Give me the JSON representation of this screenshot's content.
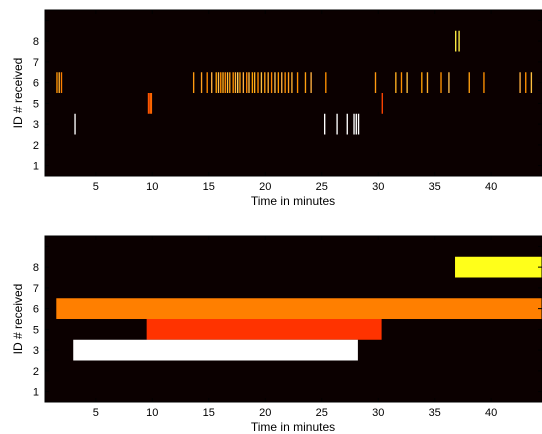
{
  "chart_data": [
    {
      "type": "heatmap",
      "title": "",
      "xlabel": "Time in minutes",
      "ylabel": "ID # received",
      "xlim": [
        0.5,
        44.5
      ],
      "ylim": [
        0.5,
        8.5
      ],
      "x_ticks": [
        5,
        10,
        15,
        20,
        25,
        30,
        35,
        40
      ],
      "y_ticks": [
        1,
        2,
        3,
        4,
        5,
        6,
        7,
        8
      ],
      "y_tick_labels": [
        "1",
        "2",
        "3",
        "5",
        "6",
        "7",
        "8"
      ],
      "y_tick_label_rows": [
        1,
        2,
        3,
        4,
        5,
        6,
        7
      ],
      "background_color": "#0b0000",
      "rows": [
        {
          "row": 7,
          "id_label": "8",
          "events": [
            {
              "x": 36.8,
              "width": 0.12,
              "color": "#ffee44"
            },
            {
              "x": 37.1,
              "width": 0.12,
              "color": "#ffee44"
            }
          ]
        },
        {
          "row": 5,
          "id_label": "6",
          "events": [
            {
              "x": 1.5,
              "width": 0.12,
              "color": "#ff9000"
            },
            {
              "x": 1.7,
              "width": 0.12,
              "color": "#ffb030"
            },
            {
              "x": 1.9,
              "width": 0.12,
              "color": "#ff8000"
            },
            {
              "x": 13.6,
              "width": 0.12,
              "color": "#ff9a10"
            },
            {
              "x": 14.3,
              "width": 0.12,
              "color": "#ffa020"
            },
            {
              "x": 14.8,
              "width": 0.12,
              "color": "#ff8a00"
            },
            {
              "x": 15.2,
              "width": 0.12,
              "color": "#ffb040"
            },
            {
              "x": 15.6,
              "width": 0.12,
              "color": "#ffa000"
            },
            {
              "x": 15.8,
              "width": 0.12,
              "color": "#ffc050"
            },
            {
              "x": 16.0,
              "width": 0.12,
              "color": "#ff9000"
            },
            {
              "x": 16.2,
              "width": 0.12,
              "color": "#ffb020"
            },
            {
              "x": 16.4,
              "width": 0.12,
              "color": "#ff8800"
            },
            {
              "x": 16.6,
              "width": 0.12,
              "color": "#ffc040"
            },
            {
              "x": 16.8,
              "width": 0.12,
              "color": "#ffa010"
            },
            {
              "x": 17.1,
              "width": 0.12,
              "color": "#ff9000"
            },
            {
              "x": 17.3,
              "width": 0.12,
              "color": "#ffb030"
            },
            {
              "x": 17.5,
              "width": 0.12,
              "color": "#ffd060"
            },
            {
              "x": 17.7,
              "width": 0.12,
              "color": "#ff9a00"
            },
            {
              "x": 18.0,
              "width": 0.12,
              "color": "#ffb040"
            },
            {
              "x": 18.3,
              "width": 0.12,
              "color": "#ff8800"
            },
            {
              "x": 18.5,
              "width": 0.12,
              "color": "#ffc050"
            },
            {
              "x": 18.8,
              "width": 0.12,
              "color": "#ffa000"
            },
            {
              "x": 19.0,
              "width": 0.12,
              "color": "#ffb020"
            },
            {
              "x": 19.3,
              "width": 0.12,
              "color": "#ff9000"
            },
            {
              "x": 19.6,
              "width": 0.12,
              "color": "#ffc040"
            },
            {
              "x": 19.9,
              "width": 0.12,
              "color": "#ffa010"
            },
            {
              "x": 20.2,
              "width": 0.12,
              "color": "#ffb030"
            },
            {
              "x": 20.5,
              "width": 0.12,
              "color": "#ff8800"
            },
            {
              "x": 20.8,
              "width": 0.12,
              "color": "#ffc050"
            },
            {
              "x": 21.1,
              "width": 0.12,
              "color": "#ff9a00"
            },
            {
              "x": 21.4,
              "width": 0.12,
              "color": "#ffb040"
            },
            {
              "x": 21.7,
              "width": 0.12,
              "color": "#ff9000"
            },
            {
              "x": 22.0,
              "width": 0.12,
              "color": "#ffa020"
            },
            {
              "x": 22.3,
              "width": 0.12,
              "color": "#ffb030"
            },
            {
              "x": 22.8,
              "width": 0.12,
              "color": "#ff9000"
            },
            {
              "x": 23.5,
              "width": 0.12,
              "color": "#ffa010"
            },
            {
              "x": 24.0,
              "width": 0.12,
              "color": "#ffb040"
            },
            {
              "x": 25.3,
              "width": 0.12,
              "color": "#ff9000"
            },
            {
              "x": 29.7,
              "width": 0.12,
              "color": "#ff9a10"
            },
            {
              "x": 31.5,
              "width": 0.12,
              "color": "#ffb020"
            },
            {
              "x": 32.0,
              "width": 0.12,
              "color": "#ff9000"
            },
            {
              "x": 32.5,
              "width": 0.12,
              "color": "#ffc040"
            },
            {
              "x": 33.8,
              "width": 0.12,
              "color": "#ffa000"
            },
            {
              "x": 34.3,
              "width": 0.12,
              "color": "#ffb030"
            },
            {
              "x": 35.5,
              "width": 0.12,
              "color": "#ff9000"
            },
            {
              "x": 36.2,
              "width": 0.12,
              "color": "#ffc050"
            },
            {
              "x": 38.0,
              "width": 0.12,
              "color": "#ffa010"
            },
            {
              "x": 39.3,
              "width": 0.12,
              "color": "#ff9000"
            },
            {
              "x": 42.5,
              "width": 0.12,
              "color": "#ffb040"
            },
            {
              "x": 43.0,
              "width": 0.12,
              "color": "#ff9000"
            },
            {
              "x": 43.5,
              "width": 0.12,
              "color": "#ffc040"
            }
          ]
        },
        {
          "row": 4,
          "id_label": "5",
          "events": [
            {
              "x": 9.6,
              "width": 0.18,
              "color": "#ff5500"
            },
            {
              "x": 9.8,
              "width": 0.18,
              "color": "#ff6600"
            },
            {
              "x": 30.3,
              "width": 0.12,
              "color": "#ff4400"
            }
          ]
        },
        {
          "row": 3,
          "id_label": "3",
          "events": [
            {
              "x": 3.1,
              "width": 0.12,
              "color": "#ffffff"
            },
            {
              "x": 25.2,
              "width": 0.12,
              "color": "#ffffff"
            },
            {
              "x": 26.3,
              "width": 0.12,
              "color": "#ffffff"
            },
            {
              "x": 27.2,
              "width": 0.12,
              "color": "#ffffff"
            },
            {
              "x": 27.8,
              "width": 0.12,
              "color": "#ffffff"
            },
            {
              "x": 28.0,
              "width": 0.12,
              "color": "#ffffff"
            },
            {
              "x": 28.2,
              "width": 0.12,
              "color": "#ffffff"
            }
          ]
        }
      ]
    },
    {
      "type": "heatmap",
      "title": "",
      "xlabel": "Time in minutes",
      "ylabel": "ID # received",
      "xlim": [
        0.5,
        44.5
      ],
      "ylim": [
        0.5,
        8.5
      ],
      "x_ticks": [
        5,
        10,
        15,
        20,
        25,
        30,
        35,
        40
      ],
      "y_ticks": [
        1,
        2,
        3,
        4,
        5,
        6,
        7,
        8
      ],
      "y_tick_labels": [
        "1",
        "2",
        "3",
        "5",
        "6",
        "7",
        "8"
      ],
      "y_tick_label_rows": [
        1,
        2,
        3,
        4,
        5,
        6,
        7
      ],
      "background_color": "#0b0000",
      "rows": [
        {
          "row": 7,
          "id_label": "8",
          "start": 36.8,
          "end": 44.5,
          "color": "#ffff1a"
        },
        {
          "row": 5,
          "id_label": "6",
          "start": 1.5,
          "end": 44.5,
          "color": "#ff7f00"
        },
        {
          "row": 4,
          "id_label": "5",
          "start": 9.5,
          "end": 30.3,
          "color": "#ff3300"
        },
        {
          "row": 3,
          "id_label": "3",
          "start": 3.0,
          "end": 28.2,
          "color": "#ffffff"
        }
      ]
    }
  ]
}
